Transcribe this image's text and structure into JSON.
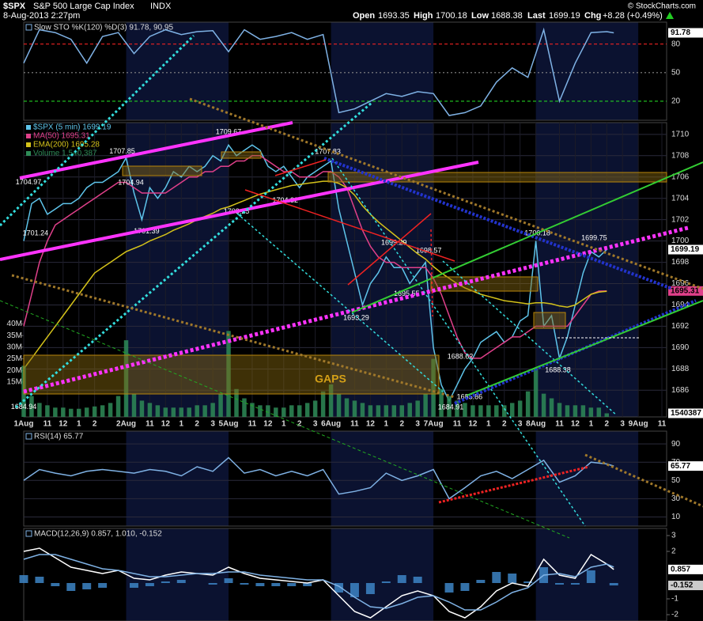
{
  "header": {
    "symbol": "$SPX",
    "name": "S&P 500 Large Cap Index",
    "exchange": "INDX",
    "date": "8-Aug-2013 2:27pm",
    "open_label": "Open",
    "open": "1693.35",
    "high_label": "High",
    "high": "1700.18",
    "low_label": "Low",
    "low": "1688.38",
    "last_label": "Last",
    "last": "1699.19",
    "chg_label": "Chg",
    "chg": "+8.28 (+0.49%)",
    "credit": "© StockCharts.com"
  },
  "chart_data": [
    {
      "type": "line",
      "title": "Slow STO %K(120) %D(3) 91.78, 90.95",
      "x": [
        0,
        1,
        2,
        3,
        4,
        5,
        6,
        7,
        8,
        9,
        10,
        11,
        12,
        13,
        14,
        15,
        16,
        17,
        18,
        19,
        20,
        21,
        22,
        23,
        24,
        25,
        26,
        27,
        28,
        29,
        30,
        31,
        32,
        33,
        34,
        35,
        36,
        37,
        37.45
      ],
      "xlim": [
        0,
        40.8
      ],
      "ylim": [
        0,
        103
      ],
      "yticks": [
        20,
        50,
        80
      ],
      "series": [
        {
          "color": "#7fb2e5",
          "values": [
            60,
            95,
            92,
            85,
            60,
            88,
            92,
            70,
            88,
            95,
            90,
            93,
            94,
            72,
            95,
            85,
            88,
            92,
            85,
            90,
            8,
            12,
            20,
            28,
            25,
            30,
            28,
            5,
            8,
            15,
            40,
            55,
            45,
            95,
            20,
            60,
            92,
            93,
            91.78
          ]
        }
      ]
    },
    {
      "type": "line",
      "x": [
        0,
        0.5,
        1,
        1.5,
        2,
        2.5,
        3,
        3.5,
        4,
        4.5,
        5,
        5.5,
        6,
        6.5,
        7,
        7.5,
        8,
        8.5,
        9,
        9.5,
        10,
        10.5,
        11,
        11.5,
        12,
        12.5,
        13,
        13.5,
        14,
        14.5,
        15,
        15.5,
        16,
        16.5,
        17,
        17.5,
        18,
        18.5,
        19,
        19.5,
        20,
        20.5,
        21,
        21.5,
        22,
        22.5,
        23,
        23.5,
        24,
        24.5,
        25,
        25.5,
        26,
        26.5,
        27,
        27.5,
        28,
        28.5,
        29,
        29.5,
        30,
        30.5,
        31,
        31.5,
        32,
        32.5,
        33,
        33.5,
        34,
        34.5,
        35,
        35.5,
        36,
        36.5,
        37
      ],
      "xlim": [
        0,
        40.8
      ],
      "xticks": [
        {
          "value": 0,
          "label": "1Aug"
        },
        {
          "value": 1.5,
          "label": "11"
        },
        {
          "value": 2.5,
          "label": "12"
        },
        {
          "value": 3.5,
          "label": "1"
        },
        {
          "value": 4.5,
          "label": "2"
        },
        {
          "value": 6.5,
          "label": "2Aug"
        },
        {
          "value": 8,
          "label": "11"
        },
        {
          "value": 9,
          "label": "12"
        },
        {
          "value": 10,
          "label": "1"
        },
        {
          "value": 11,
          "label": "2"
        },
        {
          "value": 12,
          "label": "3"
        },
        {
          "value": 13,
          "label": "5Aug"
        },
        {
          "value": 14.5,
          "label": "11"
        },
        {
          "value": 15.5,
          "label": "12"
        },
        {
          "value": 16.5,
          "label": "1"
        },
        {
          "value": 17.5,
          "label": "2"
        },
        {
          "value": 18.5,
          "label": "3"
        },
        {
          "value": 19.5,
          "label": "6Aug"
        },
        {
          "value": 21,
          "label": "11"
        },
        {
          "value": 22,
          "label": "12"
        },
        {
          "value": 23,
          "label": "1"
        },
        {
          "value": 24,
          "label": "2"
        },
        {
          "value": 25,
          "label": "3"
        },
        {
          "value": 26,
          "label": "7Aug"
        },
        {
          "value": 27.5,
          "label": "11"
        },
        {
          "value": 28.5,
          "label": "12"
        },
        {
          "value": 29.5,
          "label": "1"
        },
        {
          "value": 30.5,
          "label": "2"
        },
        {
          "value": 31.5,
          "label": "3"
        },
        {
          "value": 32.5,
          "label": "8Aug"
        },
        {
          "value": 34,
          "label": "11"
        },
        {
          "value": 35,
          "label": "12"
        },
        {
          "value": 36,
          "label": "1"
        },
        {
          "value": 37,
          "label": "2"
        },
        {
          "value": 38,
          "label": "3"
        },
        {
          "value": 39,
          "label": "9Aug"
        },
        {
          "value": 40.5,
          "label": "11"
        }
      ],
      "ylim": [
        1683.5,
        1711.1
      ],
      "yticks": [
        1686,
        1688,
        1690,
        1692,
        1694,
        1696,
        1698,
        1700,
        1702,
        1704,
        1706,
        1708,
        1710
      ],
      "y2lim": [
        0,
        126700000
      ],
      "y2ticks": [
        {
          "value": 15000000,
          "label": "15M"
        },
        {
          "value": 20000000,
          "label": "20M"
        },
        {
          "value": 25000000,
          "label": "25M"
        },
        {
          "value": 30000000,
          "label": "30M"
        },
        {
          "value": 35000000,
          "label": "35M"
        },
        {
          "value": 40000000,
          "label": "40M"
        }
      ],
      "grid": true,
      "series": [
        {
          "name": "$SPX (5 min) 1699.19",
          "color": "#5ec4ea",
          "values": [
            1700,
            1703.5,
            1704,
            1702.5,
            1703,
            1703.5,
            1703.5,
            1704,
            1705,
            1705.5,
            1705.5,
            1706,
            1706.5,
            1707.8,
            1704.5,
            1702,
            1705,
            1704,
            1705,
            1706.5,
            1706,
            1707,
            1706.5,
            1707,
            1708,
            1707.5,
            1709,
            1708,
            1708.5,
            1709,
            1708.5,
            1707,
            1706.5,
            1707,
            1706,
            1705,
            1706,
            1706.5,
            1707,
            1707.5,
            1703,
            1700,
            1697,
            1694,
            1696,
            1697,
            1698.5,
            1697.5,
            1697.5,
            1696,
            1697,
            1698,
            1690,
            1686.5,
            1685,
            1686.5,
            1688,
            1689,
            1690.5,
            1691,
            1691.5,
            1690.5,
            1691,
            1692.5,
            1693,
            1700,
            1692,
            1693,
            1689,
            1691,
            1694,
            1697,
            1699,
            1698.5,
            1699.19
          ]
        },
        {
          "name": "MA(50) 1695.31",
          "color": "#e0408a",
          "values": [
            1692,
            1695,
            1698,
            1700,
            1701.5,
            1702,
            1702.5,
            1703,
            1703.5,
            1704,
            1704.5,
            1705,
            1705.5,
            1705.5,
            1705,
            1704.5,
            1704.5,
            1704.5,
            1704.5,
            1705,
            1705.5,
            1706,
            1706,
            1706.5,
            1706.5,
            1707,
            1707,
            1707.5,
            1707.5,
            1708,
            1708,
            1707.5,
            1707,
            1706.5,
            1706.5,
            1706,
            1706,
            1706,
            1706.5,
            1706.5,
            1706,
            1705,
            1703,
            1701,
            1699.5,
            1698.5,
            1698,
            1698,
            1697.5,
            1697.5,
            1697.5,
            1697.5,
            1696.5,
            1695,
            1693,
            1691,
            1689.5,
            1689,
            1689,
            1689.5,
            1690,
            1690.5,
            1691,
            1691,
            1691.5,
            1692,
            1692,
            1692,
            1692,
            1692,
            1693,
            1694,
            1695,
            1695.3,
            1695.31
          ]
        },
        {
          "name": "EMA(200) 1695.28",
          "color": "#d4c21a",
          "values": [
            1688,
            1689,
            1690,
            1691,
            1692,
            1693,
            1694,
            1695,
            1696,
            1697,
            1697.5,
            1698,
            1698.5,
            1699,
            1699.3,
            1699.6,
            1700,
            1700.3,
            1700.6,
            1701,
            1701.3,
            1701.6,
            1702,
            1702.3,
            1702.6,
            1703,
            1703.2,
            1703.5,
            1703.8,
            1704.1,
            1704.4,
            1704.6,
            1704.8,
            1705,
            1705.2,
            1705.3,
            1705.4,
            1705.5,
            1705.6,
            1705.6,
            1705.4,
            1705,
            1704.3,
            1703.3,
            1702.5,
            1701.8,
            1701.2,
            1700.6,
            1700,
            1699.4,
            1698.8,
            1698.3,
            1697.6,
            1697,
            1696.5,
            1696,
            1695.6,
            1695.3,
            1695,
            1694.8,
            1694.6,
            1694.4,
            1694.3,
            1694.2,
            1694.1,
            1694.2,
            1694.2,
            1694.1,
            1693.9,
            1693.8,
            1694,
            1694.5,
            1695,
            1695.2,
            1695.28
          ]
        },
        {
          "name": "Volume 1,540,387",
          "color": "#2e8b57",
          "type": "bar",
          "axis": "y2",
          "values": [
            22000000,
            9000000,
            6000000,
            5000000,
            4000000,
            4000000,
            3500000,
            3500000,
            4000000,
            4500000,
            5000000,
            6000000,
            9000000,
            33000000,
            10000000,
            7000000,
            6000000,
            5000000,
            4000000,
            4000000,
            4000000,
            4000000,
            5000000,
            5000000,
            6000000,
            10000000,
            37000000,
            12000000,
            8000000,
            6000000,
            5000000,
            5000000,
            4000000,
            4000000,
            5000000,
            5000000,
            6000000,
            7000000,
            11000000,
            14000000,
            10000000,
            8000000,
            7000000,
            6000000,
            5000000,
            5000000,
            5000000,
            5000000,
            5000000,
            6000000,
            7000000,
            10000000,
            25000000,
            12000000,
            9000000,
            7000000,
            6000000,
            5000000,
            5000000,
            5000000,
            5000000,
            5000000,
            6000000,
            7000000,
            11000000,
            21000000,
            10000000,
            8000000,
            6000000,
            5000000,
            5000000,
            5000000,
            4000000,
            4000000,
            1540387
          ]
        }
      ],
      "annotations": [
        {
          "x": 0.3,
          "y": 1704.97
        },
        {
          "x": 0.75,
          "y": 1701.24
        },
        {
          "x": 6.25,
          "y": 1707.85
        },
        {
          "x": 6.8,
          "y": 1704.94
        },
        {
          "x": 7.8,
          "y": 1701.39
        },
        {
          "x": 13.0,
          "y": 1709.67
        },
        {
          "x": 13.5,
          "y": 1703.25
        },
        {
          "x": 16.6,
          "y": 1704.32
        },
        {
          "x": 19.3,
          "y": 1707.83
        },
        {
          "x": 23.5,
          "y": 1699.29
        },
        {
          "x": 25.7,
          "y": 1698.57
        },
        {
          "x": 24.3,
          "y": 1695.55
        },
        {
          "x": 21.1,
          "y": 1693.29
        },
        {
          "x": 27.7,
          "y": 1688.62
        },
        {
          "x": 27.1,
          "y": 1684.91
        },
        {
          "x": 28.3,
          "y": 1685.86
        },
        {
          "x": 32.6,
          "y": 1700.18
        },
        {
          "x": 36.2,
          "y": 1699.75
        },
        {
          "x": 33.9,
          "y": 1688.38
        },
        {
          "x": 0.0,
          "y": 1684.94
        }
      ],
      "gaps_label": "GAPS"
    },
    {
      "type": "line",
      "title": "RSI(14) 65.77",
      "x": [
        0,
        1,
        2,
        3,
        4,
        5,
        6,
        7,
        8,
        9,
        10,
        11,
        12,
        13,
        14,
        15,
        16,
        17,
        18,
        19,
        20,
        21,
        22,
        23,
        24,
        25,
        26,
        27,
        28,
        29,
        30,
        31,
        32,
        33,
        34,
        35,
        36,
        37,
        37.45
      ],
      "xlim": [
        0,
        40.8
      ],
      "ylim": [
        0,
        104
      ],
      "yticks": [
        10,
        30,
        50,
        70,
        90
      ],
      "grid": true,
      "series": [
        {
          "color": "#7fb2e5",
          "values": [
            50,
            62,
            58,
            55,
            60,
            62,
            60,
            58,
            62,
            60,
            55,
            65,
            60,
            75,
            58,
            62,
            55,
            60,
            55,
            62,
            35,
            38,
            42,
            58,
            50,
            55,
            62,
            30,
            42,
            55,
            60,
            52,
            62,
            72,
            48,
            55,
            70,
            68,
            65.77
          ]
        }
      ]
    },
    {
      "type": "line",
      "title": "MACD(12,26,9) 0.857, 1.010, -0.152",
      "x": [
        0,
        1,
        2,
        3,
        4,
        5,
        6,
        7,
        8,
        9,
        10,
        11,
        12,
        13,
        14,
        15,
        16,
        17,
        18,
        19,
        20,
        21,
        22,
        23,
        24,
        25,
        26,
        27,
        28,
        29,
        30,
        31,
        32,
        33,
        34,
        35,
        36,
        37,
        37.45
      ],
      "xlim": [
        0,
        40.8
      ],
      "ylim": [
        -2.4,
        3.45
      ],
      "yticks": [
        -2,
        -1,
        2,
        3
      ],
      "series": [
        {
          "color": "#3d85c6",
          "type": "bar",
          "values": [
            0.5,
            0.4,
            -0.2,
            -0.5,
            -0.4,
            -0.3,
            0,
            -0.3,
            -0.2,
            0.1,
            0.2,
            0,
            -0.1,
            0.3,
            -0.1,
            -0.2,
            -0.2,
            -0.2,
            -0.2,
            0,
            -0.6,
            -0.9,
            -0.7,
            0.1,
            0.5,
            0.4,
            0,
            -0.6,
            -0.5,
            0.2,
            0.7,
            0.6,
            0.1,
            1.0,
            -0.1,
            -0.1,
            0.8,
            0,
            -0.152
          ]
        },
        {
          "color": "#ffffff",
          "values": [
            2.0,
            2.2,
            1.6,
            1.0,
            0.8,
            0.6,
            0.8,
            0.3,
            0.2,
            0.5,
            0.7,
            0.6,
            0.5,
            1.0,
            0.6,
            0.3,
            0.2,
            0.1,
            0.0,
            0.2,
            -0.8,
            -1.8,
            -2.2,
            -1.5,
            -0.8,
            -0.5,
            -0.8,
            -1.8,
            -2.2,
            -1.5,
            -0.5,
            0.0,
            -0.2,
            1.5,
            0.5,
            0.3,
            1.8,
            1.2,
            0.857
          ]
        },
        {
          "color": "#7fb2e5",
          "values": [
            1.5,
            1.8,
            1.8,
            1.5,
            1.2,
            0.9,
            0.8,
            0.6,
            0.4,
            0.4,
            0.5,
            0.6,
            0.6,
            0.7,
            0.7,
            0.5,
            0.4,
            0.3,
            0.2,
            0.2,
            -0.2,
            -0.9,
            -1.5,
            -1.6,
            -1.3,
            -0.9,
            -0.8,
            -1.2,
            -1.7,
            -1.7,
            -1.2,
            -0.6,
            -0.3,
            0.5,
            0.6,
            0.4,
            1.0,
            1.2,
            1.01
          ]
        }
      ]
    }
  ]
}
